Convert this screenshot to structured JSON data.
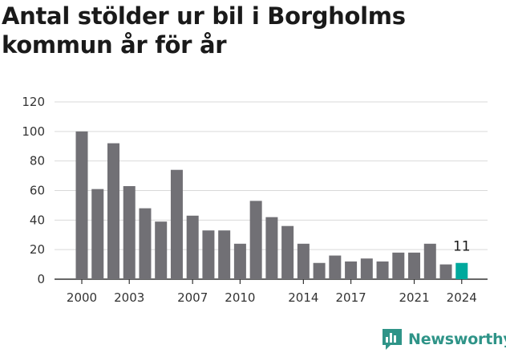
{
  "header": {
    "title": "Antal stölder ur bil i Borgholms kommun år för år"
  },
  "brand": {
    "name": "Newsworthy",
    "color": "#2f9488"
  },
  "colors": {
    "bar": "#717075",
    "highlight": "#00a99d",
    "grid": "#d9d9d9",
    "axis": "#333333"
  },
  "chart_data": {
    "type": "bar",
    "title": "Antal stölder ur bil i Borgholms kommun år för år",
    "xlabel": "",
    "ylabel": "",
    "categories": [
      "2000",
      "2001",
      "2002",
      "2003",
      "2004",
      "2005",
      "2006",
      "2007",
      "2008",
      "2009",
      "2010",
      "2011",
      "2012",
      "2013",
      "2014",
      "2015",
      "2016",
      "2017",
      "2018",
      "2019",
      "2020",
      "2021",
      "2022",
      "2023",
      "2024"
    ],
    "values": [
      100,
      61,
      92,
      63,
      48,
      39,
      74,
      43,
      33,
      33,
      24,
      53,
      42,
      36,
      24,
      11,
      16,
      12,
      14,
      12,
      18,
      18,
      24,
      10,
      11
    ],
    "x_tick_labels": [
      "2000",
      "2003",
      "2007",
      "2010",
      "2014",
      "2017",
      "2021",
      "2024"
    ],
    "y_ticks": [
      0,
      20,
      40,
      60,
      80,
      100,
      120
    ],
    "ylim": [
      0,
      120
    ],
    "highlight_index": 24,
    "data_labels": [
      {
        "index": 24,
        "text": "11"
      }
    ],
    "grid": true
  }
}
